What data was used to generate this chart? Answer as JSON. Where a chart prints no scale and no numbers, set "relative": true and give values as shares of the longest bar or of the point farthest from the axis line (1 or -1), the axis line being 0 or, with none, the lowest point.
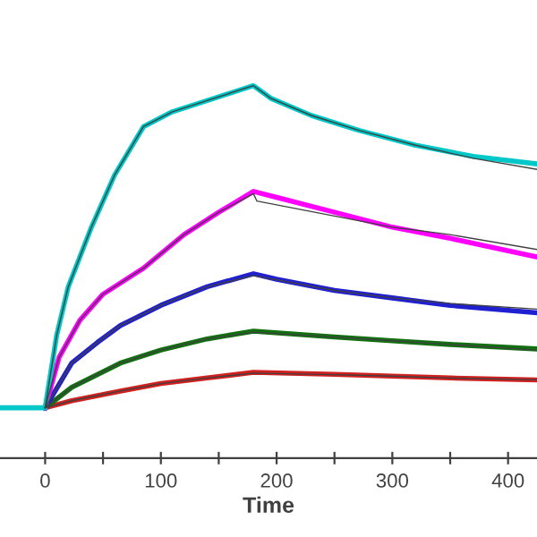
{
  "chart_data": {
    "type": "line",
    "relative": true,
    "xlabel": "Time",
    "xlim": [
      -39,
      425
    ],
    "xticks": [
      0,
      {
        "value": 50,
        "label": null
      },
      100,
      {
        "value": 150,
        "label": null
      },
      200,
      {
        "value": 250,
        "label": null
      },
      300,
      {
        "value": 350,
        "label": null
      },
      400
    ],
    "grid": false,
    "legend": false,
    "marker": "none",
    "line_style": "solid",
    "tick_labels": "x",
    "series": [
      {
        "color": "#00c8c8",
        "x": [
          -39,
          0,
          10,
          20,
          40,
          60,
          85,
          110,
          140,
          180,
          195,
          230,
          271,
          320,
          370,
          425
        ],
        "values": [
          0.135,
          0.135,
          0.33,
          0.46,
          0.62,
          0.76,
          0.89,
          0.93,
          0.96,
          1.0,
          0.966,
          0.92,
          0.88,
          0.84,
          0.81,
          0.79
        ]
      },
      {
        "color": "#ff00ff",
        "x": [
          0,
          12,
          30,
          50,
          85,
          120,
          150,
          180,
          200,
          250,
          300,
          350,
          425
        ],
        "values": [
          0.135,
          0.27,
          0.37,
          0.44,
          0.51,
          0.6,
          0.66,
          0.716,
          0.7,
          0.66,
          0.62,
          0.59,
          0.54
        ]
      },
      {
        "color": "#2020d0",
        "x": [
          0,
          23,
          45,
          65,
          100,
          140,
          180,
          200,
          250,
          300,
          350,
          425
        ],
        "values": [
          0.135,
          0.255,
          0.31,
          0.356,
          0.41,
          0.46,
          0.495,
          0.48,
          0.45,
          0.43,
          0.41,
          0.39
        ]
      },
      {
        "color": "#107010",
        "x": [
          0,
          23,
          65,
          100,
          140,
          180,
          250,
          300,
          350,
          425
        ],
        "values": [
          0.135,
          0.19,
          0.255,
          0.29,
          0.32,
          0.341,
          0.325,
          0.315,
          0.305,
          0.293
        ]
      },
      {
        "color": "#d02020",
        "x": [
          0,
          23,
          65,
          100,
          140,
          180,
          250,
          300,
          350,
          425
        ],
        "values": [
          0.135,
          0.154,
          0.18,
          0.2,
          0.215,
          0.23,
          0.225,
          0.22,
          0.215,
          0.21
        ]
      },
      {
        "color": "#404040",
        "x": [
          0,
          10,
          20,
          40,
          60,
          85,
          110,
          140,
          180,
          195,
          230,
          271,
          320,
          370,
          425
        ],
        "values": [
          0.135,
          0.33,
          0.46,
          0.62,
          0.76,
          0.89,
          0.93,
          0.96,
          1.0,
          0.966,
          0.92,
          0.88,
          0.84,
          0.805,
          0.775
        ]
      },
      {
        "color": "#404040",
        "x": [
          0,
          12,
          30,
          50,
          85,
          120,
          150,
          180,
          183,
          250,
          300,
          350,
          425
        ],
        "values": [
          0.135,
          0.27,
          0.37,
          0.44,
          0.51,
          0.6,
          0.66,
          0.71,
          0.69,
          0.65,
          0.62,
          0.6,
          0.56
        ]
      },
      {
        "color": "#404040",
        "x": [
          0,
          23,
          45,
          65,
          100,
          140,
          180,
          250,
          300,
          350,
          425
        ],
        "values": [
          0.135,
          0.255,
          0.31,
          0.356,
          0.41,
          0.46,
          0.49,
          0.45,
          0.43,
          0.415,
          0.4
        ]
      },
      {
        "color": "#404040",
        "x": [
          0,
          23,
          65,
          100,
          140,
          180,
          250,
          300,
          350,
          425
        ],
        "values": [
          0.135,
          0.19,
          0.255,
          0.29,
          0.32,
          0.338,
          0.325,
          0.315,
          0.305,
          0.29
        ]
      },
      {
        "color": "#404040",
        "x": [
          0,
          23,
          65,
          100,
          140,
          180,
          250,
          300,
          350,
          425
        ],
        "values": [
          0.135,
          0.154,
          0.18,
          0.2,
          0.215,
          0.228,
          0.224,
          0.22,
          0.215,
          0.21
        ]
      }
    ]
  }
}
